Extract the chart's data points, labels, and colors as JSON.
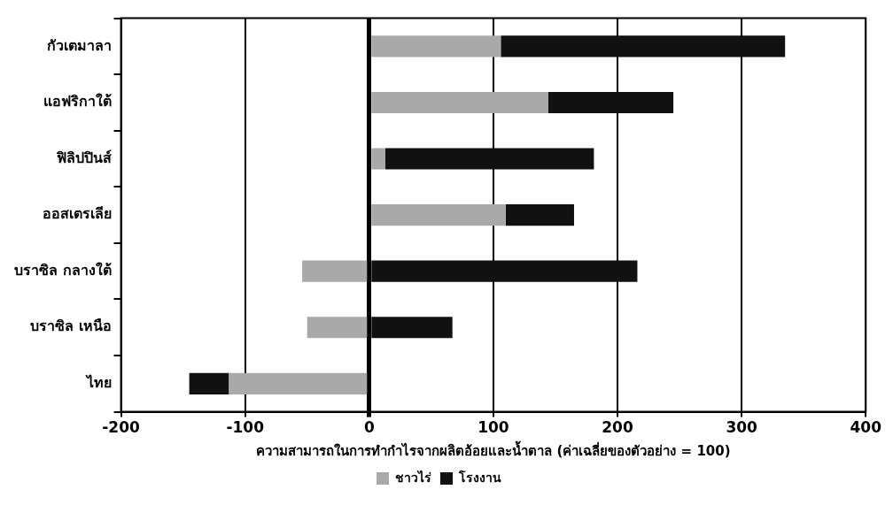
{
  "chart_data": {
    "type": "bar",
    "orientation": "horizontal",
    "stacked": true,
    "categories": [
      "กัวเตมาลา",
      "แอฟริกาใต้",
      "ฟิลิปปินส์",
      "ออสเตรเลีย",
      "บราซิล กลางใต้",
      "บราซิล เหนือ",
      "ไทย"
    ],
    "series": [
      {
        "name": "ชาวไร่",
        "color": "#a9a9a9",
        "values": [
          106,
          144,
          13,
          110,
          -54,
          -50,
          -113
        ]
      },
      {
        "name": "โรงงาน",
        "color": "#111111",
        "values": [
          229,
          101,
          168,
          55,
          216,
          67,
          -32
        ]
      }
    ],
    "xlim": [
      -200,
      400
    ],
    "xticks": [
      -200,
      -100,
      0,
      100,
      200,
      300,
      400
    ],
    "xlabel": "ความสามารถในการทำกำไรจากผลิตอ้อยและน้ำตาล (ค่าเฉลี่ยของตัวอย่าง = 100)",
    "grid": "x",
    "legend": "bottom"
  }
}
